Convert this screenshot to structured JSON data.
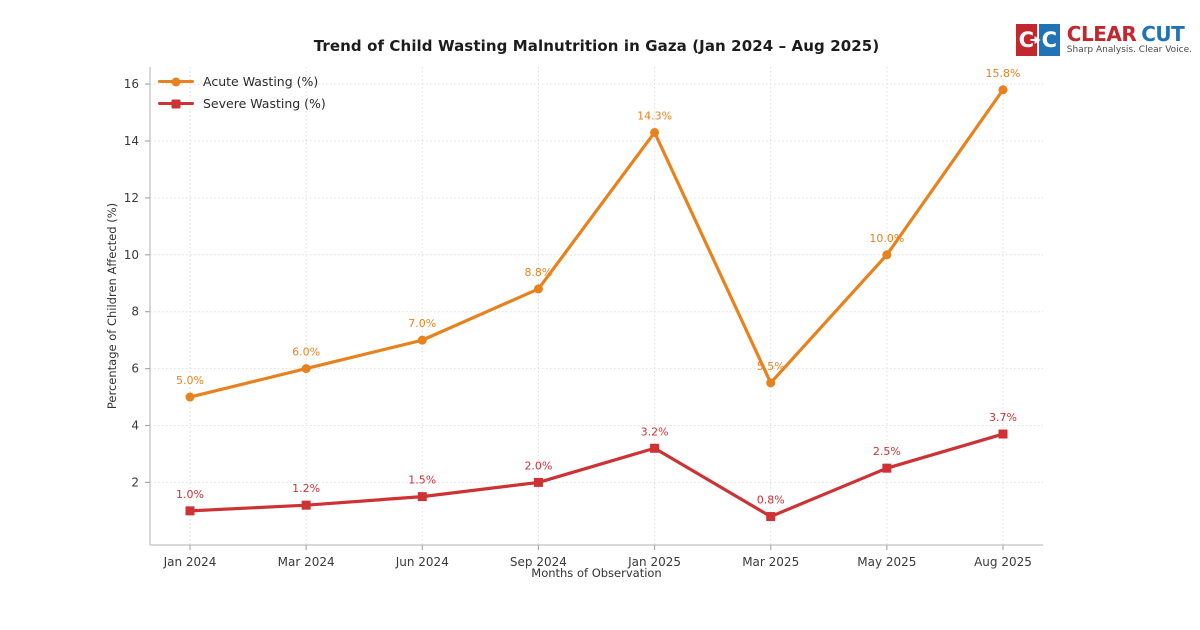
{
  "brand": {
    "name_part1": "CLEAR",
    "name_part2": "CUT",
    "tagline": "Sharp Analysis. Clear Voice.",
    "icon_letters": [
      "C",
      "C"
    ],
    "colors": {
      "red": "#C1272D",
      "blue": "#2173B8"
    }
  },
  "chart_data": {
    "type": "line",
    "title": "Trend of Child Wasting Malnutrition in Gaza (Jan 2024 – Aug 2025)",
    "xlabel": "Months of Observation",
    "ylabel": "Percentage of Children Affected (%)",
    "categories": [
      "Jan 2024",
      "Mar 2024",
      "Jun 2024",
      "Sep 2024",
      "Jan 2025",
      "Mar 2025",
      "May 2025",
      "Aug 2025"
    ],
    "series": [
      {
        "name": "Acute Wasting (%)",
        "color": "#E8821E",
        "marker": "circle",
        "values": [
          5.0,
          6.0,
          7.0,
          8.8,
          14.3,
          5.5,
          10.0,
          15.8
        ],
        "labels": [
          "5.0%",
          "6.0%",
          "7.0%",
          "8.8%",
          "14.3%",
          "5.5%",
          "10.0%",
          "15.8%"
        ]
      },
      {
        "name": "Severe Wasting (%)",
        "color": "#CD3234",
        "marker": "square",
        "values": [
          1.0,
          1.2,
          1.5,
          2.0,
          3.2,
          0.8,
          2.5,
          3.7
        ],
        "labels": [
          "1.0%",
          "1.2%",
          "1.5%",
          "2.0%",
          "3.2%",
          "0.8%",
          "2.5%",
          "3.7%"
        ]
      }
    ],
    "yticks": [
      2,
      4,
      6,
      8,
      10,
      12,
      14,
      16
    ],
    "ylim": [
      -0.2,
      16.6
    ],
    "grid": true,
    "legend_position": "top-left"
  }
}
